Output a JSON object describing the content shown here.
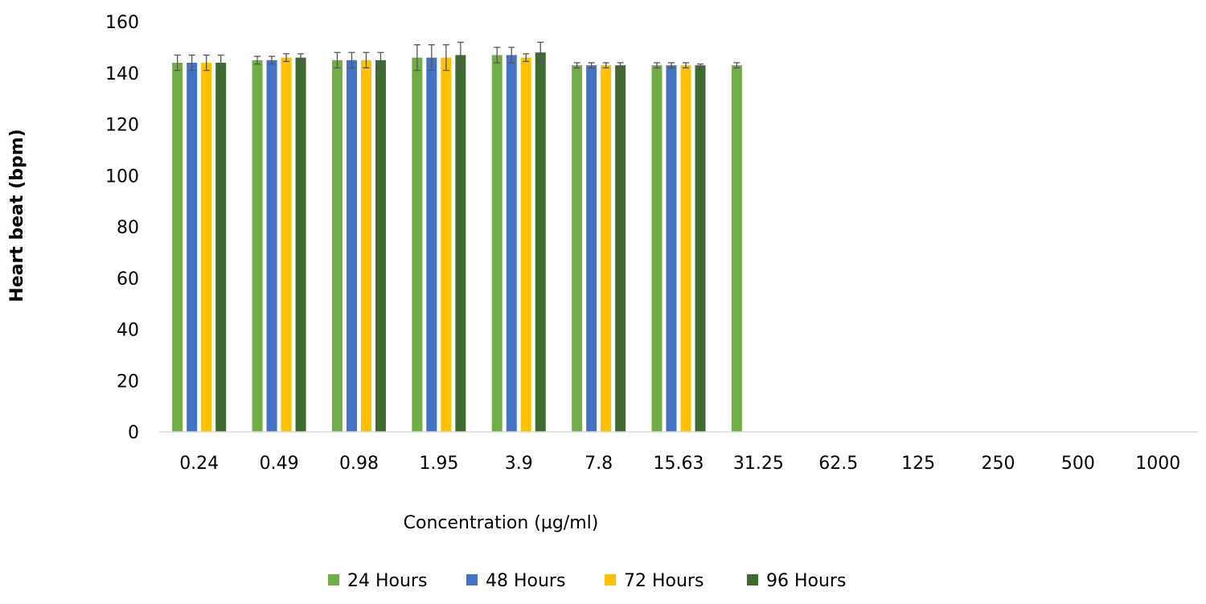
{
  "chart_data": {
    "type": "bar",
    "xlabel": "Concentration (µg/ml)",
    "ylabel": "Heart beat (bpm)",
    "ylim": [
      0,
      160
    ],
    "yticks": [
      "0",
      "20",
      "40",
      "60",
      "80",
      "100",
      "120",
      "140",
      "160"
    ],
    "grid": false,
    "legend_position": "bottom",
    "categories": [
      "0.24",
      "0.49",
      "0.98",
      "1.95",
      "3.9",
      "7.8",
      "15.63",
      "31.25",
      "62.5",
      "125",
      "250",
      "500",
      "1000"
    ],
    "series": [
      {
        "name": "24 Hours",
        "color": "#70ad47",
        "values": [
          144,
          145,
          145,
          146,
          147,
          143,
          143,
          143,
          0,
          0,
          0,
          0,
          0
        ],
        "errors": [
          3,
          1.5,
          3,
          5,
          3,
          1,
          1,
          1,
          0,
          0,
          0,
          0,
          0
        ]
      },
      {
        "name": "48 Hours",
        "color": "#4472c4",
        "values": [
          144,
          145,
          145,
          146,
          147,
          143,
          143,
          0,
          0,
          0,
          0,
          0,
          0
        ],
        "errors": [
          3,
          1.5,
          3,
          5,
          3,
          1,
          1,
          0,
          0,
          0,
          0,
          0,
          0
        ]
      },
      {
        "name": "72 Hours",
        "color": "#ffc000",
        "values": [
          144,
          146,
          145,
          146,
          146,
          143,
          143,
          0,
          0,
          0,
          0,
          0,
          0
        ],
        "errors": [
          3,
          1.5,
          3,
          5,
          1.5,
          1,
          1,
          0,
          0,
          0,
          0,
          0,
          0
        ]
      },
      {
        "name": "96 Hours",
        "color": "#3e6b30",
        "values": [
          144,
          146,
          145,
          147,
          148,
          143,
          143,
          0,
          0,
          0,
          0,
          0,
          0
        ],
        "errors": [
          3,
          1.5,
          3,
          5,
          4,
          1,
          0.5,
          0,
          0,
          0,
          0,
          0,
          0
        ]
      }
    ]
  }
}
